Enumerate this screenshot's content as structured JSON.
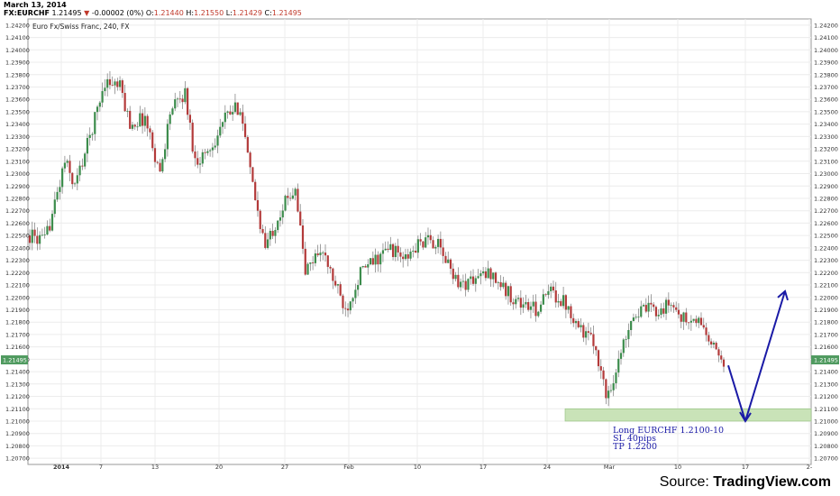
{
  "header": {
    "date": "March 13, 2014",
    "symbol": "FX:EURCHF",
    "last": "1.21495",
    "change_arrow": "▼",
    "change": "-0.00002 (0%)",
    "o_label": "O:",
    "o_val": "1.21440",
    "h_label": "H:",
    "h_val": "1.21550",
    "l_label": "L:",
    "l_val": "1.21429",
    "c_label": "C:",
    "c_val": "1.21495"
  },
  "footer": {
    "source_label": "Source:",
    "source_brand": "TradingView.com"
  },
  "colors": {
    "up": "#3c8c4c",
    "down": "#b33a3a",
    "annotation": "#1a1aa6",
    "price_tag": "#4f9a5f",
    "support_zone": "#c9e3b8"
  },
  "chart_data": {
    "type": "candlestick",
    "title": "Euro Fx/Swiss Franc, 240, FX",
    "ylim": [
      1.2065,
      1.2425
    ],
    "yticks": [
      "1.24200",
      "1.24100",
      "1.24000",
      "1.23900",
      "1.23800",
      "1.23700",
      "1.23600",
      "1.23500",
      "1.23400",
      "1.23300",
      "1.23200",
      "1.23100",
      "1.23000",
      "1.22900",
      "1.22800",
      "1.22700",
      "1.22600",
      "1.22500",
      "1.22400",
      "1.22300",
      "1.22200",
      "1.22100",
      "1.22000",
      "1.21900",
      "1.21800",
      "1.21700",
      "1.21600",
      "1.21500",
      "1.21400",
      "1.21300",
      "1.21200",
      "1.21100",
      "1.21000",
      "1.20900",
      "1.20800",
      "1.20700"
    ],
    "xticks": [
      "2014",
      "7",
      "13",
      "20",
      "27",
      "Feb",
      "10",
      "17",
      "24",
      "Mar",
      "10",
      "17",
      "2-"
    ],
    "last_price_tag": "1.21495",
    "anchors": [
      [
        0,
        1.225
      ],
      [
        6,
        1.2245
      ],
      [
        10,
        1.2275
      ],
      [
        14,
        1.231
      ],
      [
        18,
        1.229
      ],
      [
        24,
        1.233
      ],
      [
        30,
        1.2375
      ],
      [
        36,
        1.237
      ],
      [
        40,
        1.234
      ],
      [
        46,
        1.2345
      ],
      [
        52,
        1.23
      ],
      [
        56,
        1.235
      ],
      [
        62,
        1.2365
      ],
      [
        66,
        1.231
      ],
      [
        72,
        1.232
      ],
      [
        78,
        1.2345
      ],
      [
        84,
        1.2355
      ],
      [
        88,
        1.23
      ],
      [
        94,
        1.224
      ],
      [
        100,
        1.227
      ],
      [
        106,
        1.229
      ],
      [
        110,
        1.222
      ],
      [
        116,
        1.224
      ],
      [
        122,
        1.221
      ],
      [
        126,
        1.219
      ],
      [
        132,
        1.222
      ],
      [
        138,
        1.223
      ],
      [
        144,
        1.224
      ],
      [
        150,
        1.223
      ],
      [
        156,
        1.2245
      ],
      [
        162,
        1.2245
      ],
      [
        166,
        1.223
      ],
      [
        172,
        1.221
      ],
      [
        178,
        1.2215
      ],
      [
        184,
        1.222
      ],
      [
        190,
        1.2205
      ],
      [
        196,
        1.2195
      ],
      [
        202,
        1.219
      ],
      [
        208,
        1.2205
      ],
      [
        214,
        1.2195
      ],
      [
        220,
        1.2175
      ],
      [
        226,
        1.216
      ],
      [
        230,
        1.212
      ],
      [
        234,
        1.214
      ],
      [
        240,
        1.2185
      ],
      [
        246,
        1.219
      ],
      [
        252,
        1.219
      ],
      [
        256,
        1.2195
      ],
      [
        262,
        1.218
      ],
      [
        268,
        1.218
      ],
      [
        272,
        1.216
      ],
      [
        277,
        1.215
      ]
    ],
    "annotation": {
      "lines": [
        "Long EURCHF 1.2100-10",
        "SL 40pips",
        "TP 1.2200"
      ],
      "zone": [
        1.21,
        1.211
      ],
      "arrow_path": [
        [
          "2014-03-14",
          1.2145
        ],
        [
          "2014-03-18",
          1.21
        ],
        [
          "2014-03-23",
          1.2205
        ]
      ]
    }
  }
}
